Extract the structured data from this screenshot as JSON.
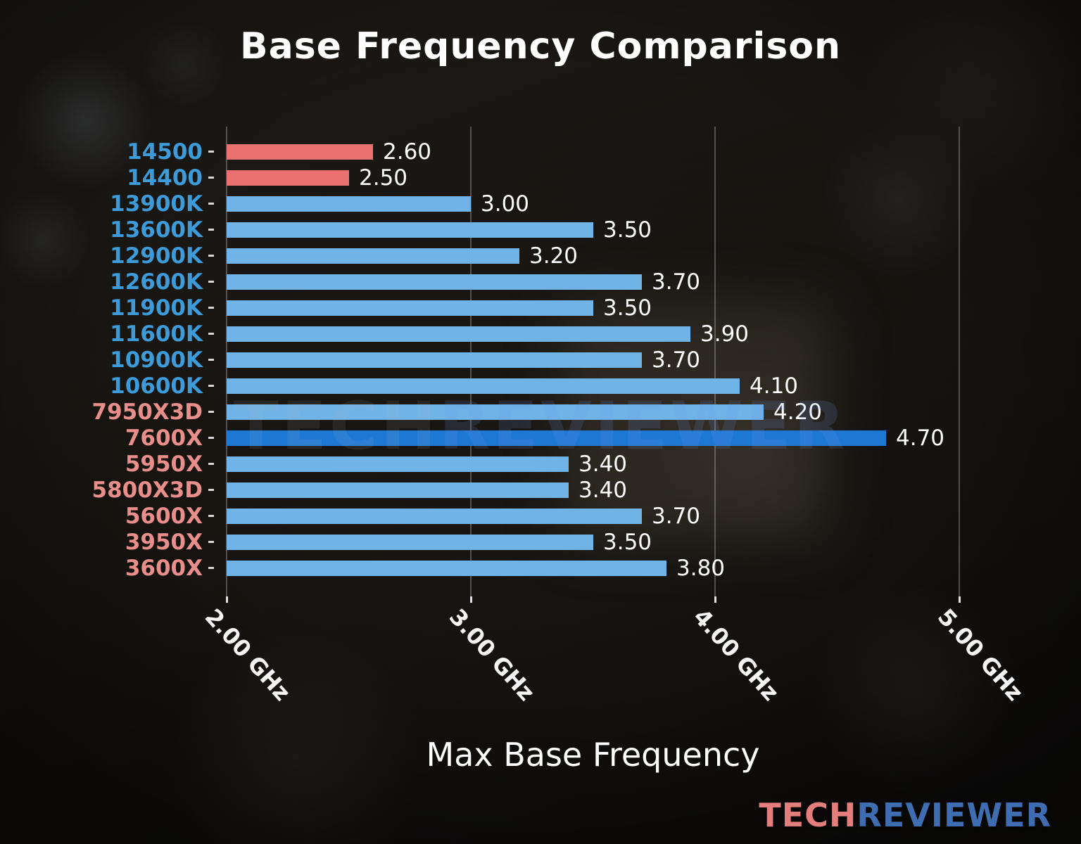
{
  "title": "Base Frequency Comparison",
  "xlabel": "Max Base Frequency",
  "watermark": {
    "part1": "TECH",
    "part2": "REVIEWER"
  },
  "logo": {
    "part1": "TECH",
    "part2": "REVIEWER"
  },
  "chart_data": {
    "type": "bar",
    "orientation": "horizontal",
    "title": "Base Frequency Comparison",
    "xlabel": "Max Base Frequency",
    "xlim": [
      2.0,
      5.2
    ],
    "grid": true,
    "legend": "none",
    "categories": [
      "14500",
      "14400",
      "13900K",
      "13600K",
      "12900K",
      "12600K",
      "11900K",
      "11600K",
      "10900K",
      "10600K",
      "7950X3D",
      "7600X",
      "5950X",
      "5800X3D",
      "5600X",
      "3950X",
      "3600X"
    ],
    "values": [
      2.6,
      2.5,
      3.0,
      3.5,
      3.2,
      3.7,
      3.5,
      3.9,
      3.7,
      4.1,
      4.2,
      4.7,
      3.4,
      3.4,
      3.7,
      3.5,
      3.8
    ],
    "value_labels": [
      "2.60",
      "2.50",
      "3.00",
      "3.50",
      "3.20",
      "3.70",
      "3.50",
      "3.90",
      "3.70",
      "4.10",
      "4.20",
      "4.70",
      "3.40",
      "3.40",
      "3.70",
      "3.50",
      "3.80"
    ],
    "bar_styles": [
      "red",
      "red",
      "blue",
      "blue",
      "blue",
      "blue",
      "blue",
      "blue",
      "blue",
      "blue",
      "blue",
      "highlight",
      "blue",
      "blue",
      "blue",
      "blue",
      "blue"
    ],
    "label_styles": [
      "intel",
      "intel",
      "intel",
      "intel",
      "intel",
      "intel",
      "intel",
      "intel",
      "intel",
      "intel",
      "amd",
      "amd",
      "amd",
      "amd",
      "amd",
      "amd",
      "amd"
    ],
    "tick_values": [
      2.0,
      3.0,
      4.0,
      5.0
    ],
    "tick_labels": [
      "2.00 GHz",
      "3.00 GHz",
      "4.00 GHz",
      "5.00 GHz"
    ],
    "colors": {
      "bars": {
        "red": "#ec7070",
        "blue": "#70b3e7",
        "highlight": "#1d78d4"
      },
      "labels": {
        "intel": "#3d9bd9",
        "amd": "#e88e8b"
      },
      "value_text": "#ffffff",
      "tick_text": "#f5f5f5",
      "gridline": "#afafaf"
    }
  }
}
